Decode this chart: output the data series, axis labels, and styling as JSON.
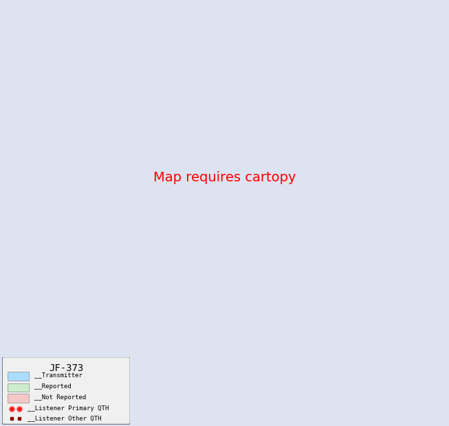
{
  "title": "JF-373",
  "background_color": "#dde3f0",
  "legend": {
    "transmitter_color": "#aaddff",
    "reported_color": "#cceecc",
    "not_reported_color": "#f5c8c8",
    "primary_qth_label": "__Listener Primary QTH",
    "other_qth_label": "__Listener Other QTH",
    "transmitter_label": "__Transmitter",
    "reported_label": "__Reported",
    "not_reported_label": "__Not Reported"
  },
  "figsize": [
    6.53,
    6.2
  ],
  "dpi": 100
}
